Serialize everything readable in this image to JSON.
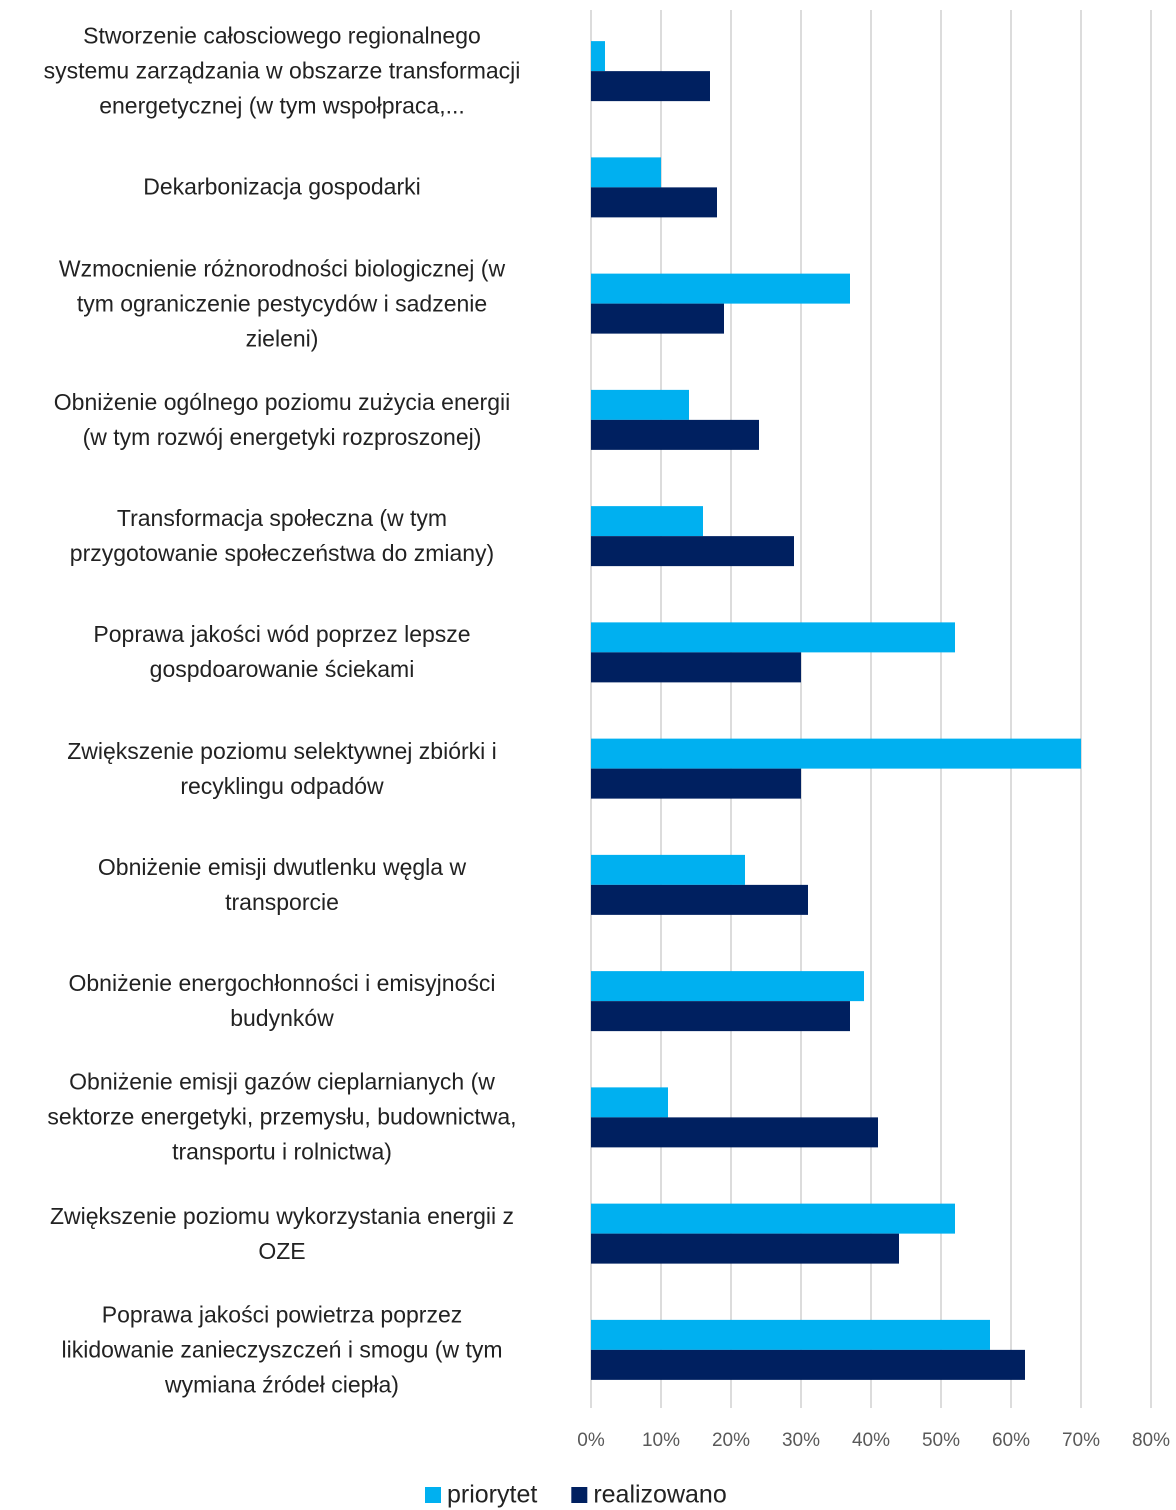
{
  "chart_data": {
    "type": "bar",
    "orientation": "horizontal",
    "categories": [
      "Stworzenie całosciowego regionalnego\nsystemu zarządzania w obszarze transformacji\nenergetycznej (w tym wspołpraca,...",
      "Dekarbonizacja gospodarki",
      "Wzmocnienie różnorodności biologicznej (w\ntym ograniczenie pestycydów i sadzenie\nzieleni)",
      "Obniżenie ogólnego poziomu zużycia energii\n(w tym rozwój energetyki rozproszonej)",
      "Transformacja społeczna (w tym\nprzygotowanie społeczeństwa do zmiany)",
      "Poprawa jakości wód poprzez lepsze\ngospdoarowanie ściekami",
      "Zwiększenie poziomu selektywnej zbiórki i\nrecyklingu odpadów",
      "Obniżenie emisji dwutlenku węgla w\ntransporcie",
      "Obniżenie energochłonności i emisyjności\nbudynków",
      "Obniżenie emisji gazów cieplarnianych (w\nsektorze energetyki, przemysłu, budownictwa,\ntransportu i rolnictwa)",
      "Zwiększenie poziomu wykorzystania energii z\nOZE",
      "Poprawa jakości powietrza poprzez\nlikidowanie zanieczyszczeń i smogu (w tym\nwymiana źródeł ciepła)"
    ],
    "series": [
      {
        "name": "priorytet",
        "color": "#00b0f0",
        "values": [
          2,
          10,
          37,
          14,
          16,
          52,
          70,
          22,
          39,
          11,
          52,
          57
        ]
      },
      {
        "name": "realizowano",
        "color": "#002060",
        "values": [
          17,
          18,
          19,
          24,
          29,
          30,
          30,
          31,
          37,
          41,
          44,
          62
        ]
      }
    ],
    "xlim": [
      0,
      80
    ],
    "xticks": [
      {
        "value": 0,
        "label": "0%"
      },
      {
        "value": 10,
        "label": "10%"
      },
      {
        "value": 20,
        "label": "20%"
      },
      {
        "value": 30,
        "label": "30%"
      },
      {
        "value": 40,
        "label": "40%"
      },
      {
        "value": 50,
        "label": "50%"
      },
      {
        "value": 60,
        "label": "60%"
      },
      {
        "value": 70,
        "label": "70%"
      },
      {
        "value": 80,
        "label": "80%"
      }
    ],
    "grid": true,
    "legend": "bottom"
  }
}
